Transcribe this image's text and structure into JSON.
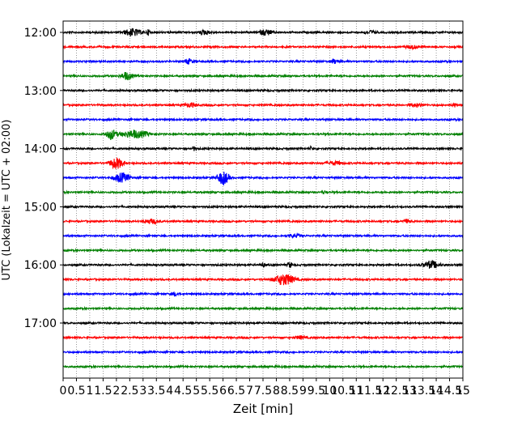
{
  "chart_data": {
    "type": "line",
    "title": "",
    "xlabel": "Zeit  [min]",
    "ylabel": "UTC (Lokalzeit = UTC + 02:00)",
    "xlim": [
      0,
      15
    ],
    "x_ticks": [
      "0",
      "0.5",
      "1",
      "1.5",
      "2",
      "2.5",
      "3",
      "3.5",
      "4",
      "4.5",
      "5",
      "5.5",
      "6",
      "6.5",
      "7",
      "7.5",
      "8",
      "8.5",
      "9",
      "9.5",
      "10",
      "10.5",
      "11",
      "11.5",
      "12",
      "12.5",
      "13",
      "13.5",
      "14",
      "14.5",
      "15"
    ],
    "x_tick_step_minutes": 0.5,
    "y_tick_labels": [
      "12:00",
      "13:00",
      "14:00",
      "15:00",
      "16:00",
      "17:00"
    ],
    "grid": "vertical dotted",
    "trace_colors": [
      "#000000",
      "#ff0000",
      "#0000ff",
      "#008000"
    ],
    "traces_start": "12:00",
    "trace_interval_minutes": 15,
    "trace_count": 24,
    "base_amplitude": 1.0,
    "events": [
      {
        "trace": 0,
        "t": 2.6,
        "amp": 4.5,
        "dur": 0.4
      },
      {
        "trace": 0,
        "t": 3.2,
        "amp": 3.0,
        "dur": 0.1
      },
      {
        "trace": 0,
        "t": 5.3,
        "amp": 2.5,
        "dur": 0.3
      },
      {
        "trace": 0,
        "t": 7.6,
        "amp": 3.5,
        "dur": 0.3
      },
      {
        "trace": 0,
        "t": 11.5,
        "amp": 2.0,
        "dur": 0.3
      },
      {
        "trace": 1,
        "t": 13.1,
        "amp": 2.0,
        "dur": 0.3
      },
      {
        "trace": 2,
        "t": 4.7,
        "amp": 3.0,
        "dur": 0.2
      },
      {
        "trace": 2,
        "t": 10.2,
        "amp": 2.5,
        "dur": 0.2
      },
      {
        "trace": 3,
        "t": 2.4,
        "amp": 4.5,
        "dur": 0.3
      },
      {
        "trace": 5,
        "t": 4.8,
        "amp": 2.5,
        "dur": 0.3
      },
      {
        "trace": 5,
        "t": 13.3,
        "amp": 2.0,
        "dur": 0.3
      },
      {
        "trace": 5,
        "t": 14.7,
        "amp": 2.0,
        "dur": 0.1
      },
      {
        "trace": 7,
        "t": 1.8,
        "amp": 6.0,
        "dur": 0.25
      },
      {
        "trace": 7,
        "t": 2.7,
        "amp": 4.5,
        "dur": 0.7
      },
      {
        "trace": 8,
        "t": 4.9,
        "amp": 2.0,
        "dur": 0.1
      },
      {
        "trace": 8,
        "t": 9.3,
        "amp": 2.0,
        "dur": 0.1
      },
      {
        "trace": 9,
        "t": 2.0,
        "amp": 6.5,
        "dur": 0.35
      },
      {
        "trace": 9,
        "t": 10.2,
        "amp": 2.0,
        "dur": 0.4
      },
      {
        "trace": 10,
        "t": 2.2,
        "amp": 5.5,
        "dur": 0.4
      },
      {
        "trace": 10,
        "t": 6.0,
        "amp": 8.0,
        "dur": 0.3
      },
      {
        "trace": 11,
        "t": 9.8,
        "amp": 2.0,
        "dur": 0.1
      },
      {
        "trace": 13,
        "t": 3.3,
        "amp": 2.5,
        "dur": 0.4
      },
      {
        "trace": 13,
        "t": 12.9,
        "amp": 2.0,
        "dur": 0.2
      },
      {
        "trace": 14,
        "t": 8.7,
        "amp": 2.0,
        "dur": 0.3
      },
      {
        "trace": 16,
        "t": 7.5,
        "amp": 2.0,
        "dur": 0.1
      },
      {
        "trace": 16,
        "t": 8.5,
        "amp": 3.5,
        "dur": 0.1
      },
      {
        "trace": 16,
        "t": 13.8,
        "amp": 4.5,
        "dur": 0.4
      },
      {
        "trace": 17,
        "t": 8.3,
        "amp": 7.0,
        "dur": 0.5
      },
      {
        "trace": 18,
        "t": 4.2,
        "amp": 2.0,
        "dur": 0.2
      },
      {
        "trace": 21,
        "t": 8.9,
        "amp": 1.8,
        "dur": 0.3
      }
    ]
  }
}
